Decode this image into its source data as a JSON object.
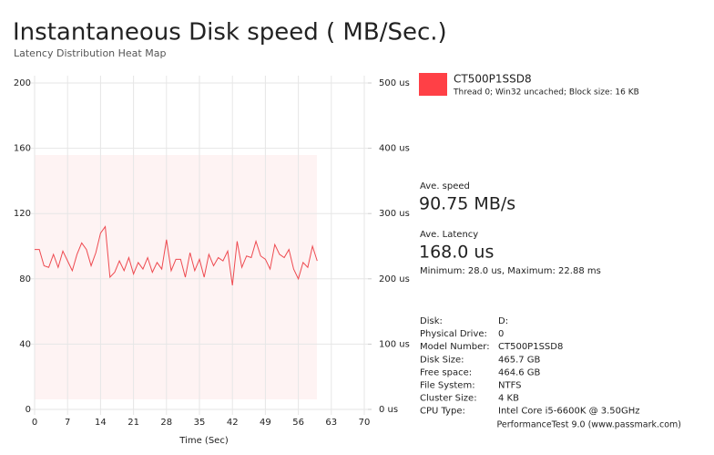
{
  "chart_data": {
    "type": "line",
    "title": "Instantaneous Disk speed ( MB/Sec.)",
    "subtitle": "Latency Distribution Heat Map",
    "x_label": "Time (Sec)",
    "x": [
      0,
      1,
      2,
      3,
      4,
      5,
      6,
      7,
      8,
      9,
      10,
      11,
      12,
      13,
      14,
      15,
      16,
      17,
      18,
      19,
      20,
      21,
      22,
      23,
      24,
      25,
      26,
      27,
      28,
      29,
      30,
      31,
      32,
      33,
      34,
      35,
      36,
      37,
      38,
      39,
      40,
      41,
      42,
      43,
      44,
      45,
      46,
      47,
      48,
      49,
      50,
      51,
      52,
      53,
      54,
      55,
      56,
      57,
      58,
      59,
      60
    ],
    "series": [
      {
        "name": "CT500P1SSD8",
        "color": "#ee4a50",
        "values": [
          98,
          98,
          88,
          87,
          95,
          87,
          97,
          91,
          85,
          95,
          102,
          98,
          88,
          96,
          108,
          112,
          81,
          84,
          91,
          85,
          93,
          83,
          90,
          86,
          93,
          84,
          90,
          86,
          104,
          85,
          92,
          92,
          81,
          96,
          85,
          92,
          81,
          95,
          88,
          93,
          91,
          97,
          76,
          103,
          87,
          94,
          93,
          103,
          94,
          92,
          86,
          101,
          95,
          93,
          98,
          86,
          80,
          90,
          87,
          100,
          91
        ]
      }
    ],
    "legend_color": "#ff4046",
    "legend_note": "Thread 0; Win32 uncached; Block size: 16 KB",
    "xlim": [
      0,
      70
    ],
    "xticks": [
      0,
      7,
      14,
      21,
      28,
      35,
      42,
      49,
      56,
      63,
      70
    ],
    "ylim": [
      0,
      200
    ],
    "yticks": [
      0,
      40,
      80,
      120,
      160,
      200
    ],
    "y2lim": [
      0,
      500
    ],
    "y2ticks": [
      {
        "value": 0,
        "label": "0 us"
      },
      {
        "value": 100,
        "label": "100 us"
      },
      {
        "value": 200,
        "label": "200 us"
      },
      {
        "value": 300,
        "label": "300 us"
      },
      {
        "value": 400,
        "label": "400 us"
      },
      {
        "value": 500,
        "label": "500 us"
      }
    ],
    "grid": true
  },
  "stats": {
    "speed_label": "Ave. speed",
    "speed": "90.75 MB/s",
    "latency_label": "Ave. Latency",
    "latency": "168.0 us",
    "min_max": "Minimum: 28.0 us, Maximum: 22.88 ms"
  },
  "info": {
    "rows": [
      [
        "Disk:",
        "D:"
      ],
      [
        "Physical Drive:",
        "0"
      ],
      [
        "Model Number:",
        "CT500P1SSD8"
      ],
      [
        "Disk Size:",
        "465.7 GB"
      ],
      [
        "Free space:",
        "464.6 GB"
      ],
      [
        "File System:",
        "NTFS"
      ],
      [
        "Cluster Size:",
        "4 KB"
      ],
      [
        "CPU Type:",
        "Intel Core i5-6600K @ 3.50GHz"
      ]
    ]
  },
  "footer": "PerformanceTest 9.0 (www.passmark.com)"
}
